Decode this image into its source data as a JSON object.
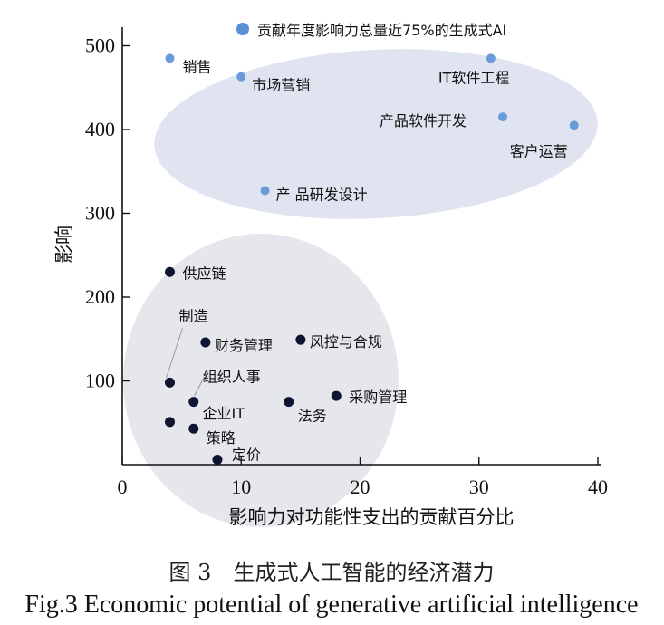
{
  "chart_data": {
    "type": "scatter",
    "xlabel": "影响力对功能性支出的贡献百分比",
    "ylabel": "影响",
    "xlim": [
      0,
      40
    ],
    "ylim": [
      0,
      520
    ],
    "xticks": [
      0,
      10,
      20,
      30,
      40
    ],
    "yticks": [
      100,
      200,
      300,
      400,
      500
    ],
    "grid": false,
    "legend": {
      "label": "贡献年度影响力总量近75%的生成式AI",
      "placement": "top",
      "color": "#5b8fd6"
    },
    "colors": {
      "high": "#6a9ad8",
      "low": "#0d1530",
      "high_region": "#dde3f0",
      "low_region": "#e4e5ea"
    },
    "series": [
      {
        "name": "贡献年度影响力总量近75%的生成式AI",
        "group": "high",
        "points": [
          {
            "label": "销售",
            "x": 4,
            "y": 485
          },
          {
            "label": "市场营销",
            "x": 10,
            "y": 463
          },
          {
            "label": "IT软件工程",
            "x": 31,
            "y": 485
          },
          {
            "label": "产品软件开发",
            "x": 32,
            "y": 415
          },
          {
            "label": "客户运营",
            "x": 38,
            "y": 405
          },
          {
            "label": "产 品研发设计",
            "x": 12,
            "y": 327
          }
        ]
      },
      {
        "group": "low",
        "points": [
          {
            "label": "供应链",
            "x": 4,
            "y": 230
          },
          {
            "label": "制造",
            "x": 4,
            "y": 98
          },
          {
            "label": "财务管理",
            "x": 7,
            "y": 146
          },
          {
            "label": "风控与合规",
            "x": 15,
            "y": 149
          },
          {
            "label": "组织人事",
            "x": 6,
            "y": 75
          },
          {
            "label": "法务",
            "x": 14,
            "y": 75
          },
          {
            "label": "采购管理",
            "x": 18,
            "y": 82
          },
          {
            "label": "企业IT",
            "x": 4,
            "y": 51
          },
          {
            "label": "策略",
            "x": 6,
            "y": 43
          },
          {
            "label": "定价",
            "x": 8,
            "y": 6
          }
        ]
      }
    ]
  },
  "caption": {
    "cn": "图 3　生成式人工智能的经济潜力",
    "en": "Fig.3 Economic potential of generative artificial intelligence"
  }
}
